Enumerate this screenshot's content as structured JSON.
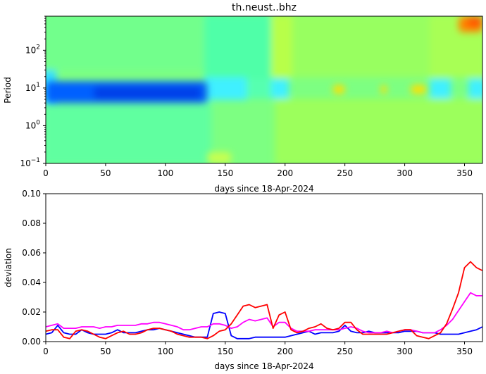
{
  "chart_data": [
    {
      "type": "heatmap",
      "title": "th.neust..bhz",
      "xlabel": "days since 18-Apr-2024",
      "ylabel": "Period",
      "xlim": [
        0,
        365
      ],
      "ylim": [
        0.1,
        800
      ],
      "yscale": "log",
      "x_ticks": [
        0,
        50,
        100,
        150,
        200,
        250,
        300,
        350
      ],
      "y_ticks": [
        {
          "value": 0.1,
          "base": "10",
          "exp": "−1"
        },
        {
          "value": 1,
          "base": "10",
          "exp": "0"
        },
        {
          "value": 10,
          "base": "10",
          "exp": "1"
        },
        {
          "value": 100,
          "base": "10",
          "exp": "2"
        }
      ],
      "colormap": "jet",
      "grid": false,
      "notable_features": [
        {
          "x_range": [
            0,
            135
          ],
          "period_range": [
            4,
            15
          ],
          "level": "low",
          "color": "#0060ff"
        },
        {
          "x_range": [
            135,
            155
          ],
          "period_range": [
            0.1,
            0.2
          ],
          "level": "elevated",
          "color": "#c8ff50"
        },
        {
          "x_range": [
            240,
            250
          ],
          "period_range": [
            7,
            12
          ],
          "level": "high",
          "color": "#ffe000"
        },
        {
          "x_range": [
            280,
            285
          ],
          "period_range": [
            7,
            12
          ],
          "level": "high",
          "color": "#ffe000"
        },
        {
          "x_range": [
            305,
            318
          ],
          "period_range": [
            7,
            12
          ],
          "level": "high",
          "color": "#ffe000"
        },
        {
          "x_range": [
            345,
            365
          ],
          "period_range": [
            300,
            800
          ],
          "level": "highest",
          "color": "#ff8800"
        }
      ]
    },
    {
      "type": "line",
      "xlabel": "days since 18-Apr-2024",
      "ylabel": "deviation",
      "xlim": [
        0,
        365
      ],
      "ylim": [
        0,
        0.1
      ],
      "x_ticks": [
        0,
        50,
        100,
        150,
        200,
        250,
        300,
        350
      ],
      "y_ticks": [
        "0.00",
        "0.02",
        "0.04",
        "0.06",
        "0.08",
        "0.10"
      ],
      "grid": false,
      "series": [
        {
          "color": "#0000ff",
          "x": [
            0,
            5,
            10,
            15,
            20,
            25,
            30,
            35,
            40,
            45,
            50,
            55,
            60,
            65,
            70,
            75,
            80,
            85,
            90,
            95,
            100,
            105,
            110,
            115,
            120,
            125,
            130,
            135,
            140,
            145,
            150,
            155,
            160,
            165,
            170,
            175,
            180,
            185,
            190,
            195,
            200,
            205,
            210,
            215,
            220,
            225,
            230,
            235,
            240,
            245,
            250,
            255,
            260,
            265,
            270,
            275,
            280,
            285,
            290,
            295,
            300,
            305,
            310,
            315,
            320,
            325,
            330,
            335,
            340,
            345,
            350,
            355,
            360,
            365
          ],
          "y": [
            0.005,
            0.006,
            0.011,
            0.006,
            0.005,
            0.005,
            0.008,
            0.006,
            0.005,
            0.005,
            0.005,
            0.006,
            0.008,
            0.006,
            0.006,
            0.006,
            0.007,
            0.008,
            0.008,
            0.009,
            0.008,
            0.007,
            0.006,
            0.005,
            0.004,
            0.003,
            0.003,
            0.003,
            0.019,
            0.02,
            0.019,
            0.004,
            0.002,
            0.002,
            0.002,
            0.003,
            0.003,
            0.003,
            0.003,
            0.003,
            0.003,
            0.004,
            0.005,
            0.006,
            0.007,
            0.005,
            0.006,
            0.006,
            0.006,
            0.007,
            0.011,
            0.007,
            0.006,
            0.006,
            0.007,
            0.006,
            0.006,
            0.006,
            0.006,
            0.006,
            0.007,
            0.007,
            0.007,
            0.006,
            0.006,
            0.006,
            0.005,
            0.005,
            0.005,
            0.005,
            0.006,
            0.007,
            0.008,
            0.01
          ]
        },
        {
          "color": "#ff00ff",
          "x": [
            0,
            5,
            10,
            15,
            20,
            25,
            30,
            35,
            40,
            45,
            50,
            55,
            60,
            65,
            70,
            75,
            80,
            85,
            90,
            95,
            100,
            105,
            110,
            115,
            120,
            125,
            130,
            135,
            140,
            145,
            150,
            155,
            160,
            165,
            170,
            175,
            180,
            185,
            190,
            195,
            200,
            205,
            210,
            215,
            220,
            225,
            230,
            235,
            240,
            245,
            250,
            255,
            260,
            265,
            270,
            275,
            280,
            285,
            290,
            295,
            300,
            305,
            310,
            315,
            320,
            325,
            330,
            335,
            340,
            345,
            350,
            355,
            360,
            365
          ],
          "y": [
            0.01,
            0.011,
            0.012,
            0.009,
            0.009,
            0.009,
            0.01,
            0.01,
            0.01,
            0.009,
            0.01,
            0.01,
            0.011,
            0.011,
            0.011,
            0.011,
            0.012,
            0.012,
            0.013,
            0.013,
            0.012,
            0.011,
            0.01,
            0.008,
            0.008,
            0.009,
            0.01,
            0.01,
            0.012,
            0.012,
            0.011,
            0.009,
            0.01,
            0.013,
            0.015,
            0.014,
            0.015,
            0.016,
            0.01,
            0.013,
            0.013,
            0.009,
            0.007,
            0.007,
            0.007,
            0.008,
            0.008,
            0.008,
            0.008,
            0.008,
            0.009,
            0.01,
            0.009,
            0.007,
            0.006,
            0.006,
            0.006,
            0.007,
            0.006,
            0.007,
            0.008,
            0.008,
            0.007,
            0.006,
            0.006,
            0.006,
            0.008,
            0.011,
            0.015,
            0.021,
            0.027,
            0.033,
            0.031,
            0.031
          ]
        },
        {
          "color": "#ff0000",
          "x": [
            0,
            5,
            10,
            15,
            20,
            25,
            30,
            35,
            40,
            45,
            50,
            55,
            60,
            65,
            70,
            75,
            80,
            85,
            90,
            95,
            100,
            105,
            110,
            115,
            120,
            125,
            130,
            135,
            140,
            145,
            150,
            155,
            160,
            165,
            170,
            175,
            180,
            185,
            190,
            195,
            200,
            205,
            210,
            215,
            220,
            225,
            230,
            235,
            240,
            245,
            250,
            255,
            260,
            265,
            270,
            275,
            280,
            285,
            290,
            295,
            300,
            305,
            310,
            315,
            320,
            325,
            330,
            335,
            340,
            345,
            350,
            355,
            360,
            365
          ],
          "y": [
            0.007,
            0.008,
            0.008,
            0.003,
            0.002,
            0.007,
            0.008,
            0.007,
            0.005,
            0.003,
            0.002,
            0.004,
            0.006,
            0.007,
            0.005,
            0.005,
            0.006,
            0.008,
            0.009,
            0.009,
            0.008,
            0.007,
            0.005,
            0.004,
            0.003,
            0.003,
            0.003,
            0.002,
            0.004,
            0.007,
            0.008,
            0.012,
            0.018,
            0.024,
            0.025,
            0.023,
            0.024,
            0.025,
            0.009,
            0.018,
            0.02,
            0.008,
            0.006,
            0.007,
            0.009,
            0.01,
            0.012,
            0.009,
            0.008,
            0.009,
            0.013,
            0.013,
            0.008,
            0.005,
            0.005,
            0.005,
            0.005,
            0.005,
            0.006,
            0.007,
            0.008,
            0.008,
            0.004,
            0.003,
            0.002,
            0.004,
            0.006,
            0.012,
            0.022,
            0.033,
            0.05,
            0.054,
            0.05,
            0.048
          ]
        }
      ]
    }
  ]
}
